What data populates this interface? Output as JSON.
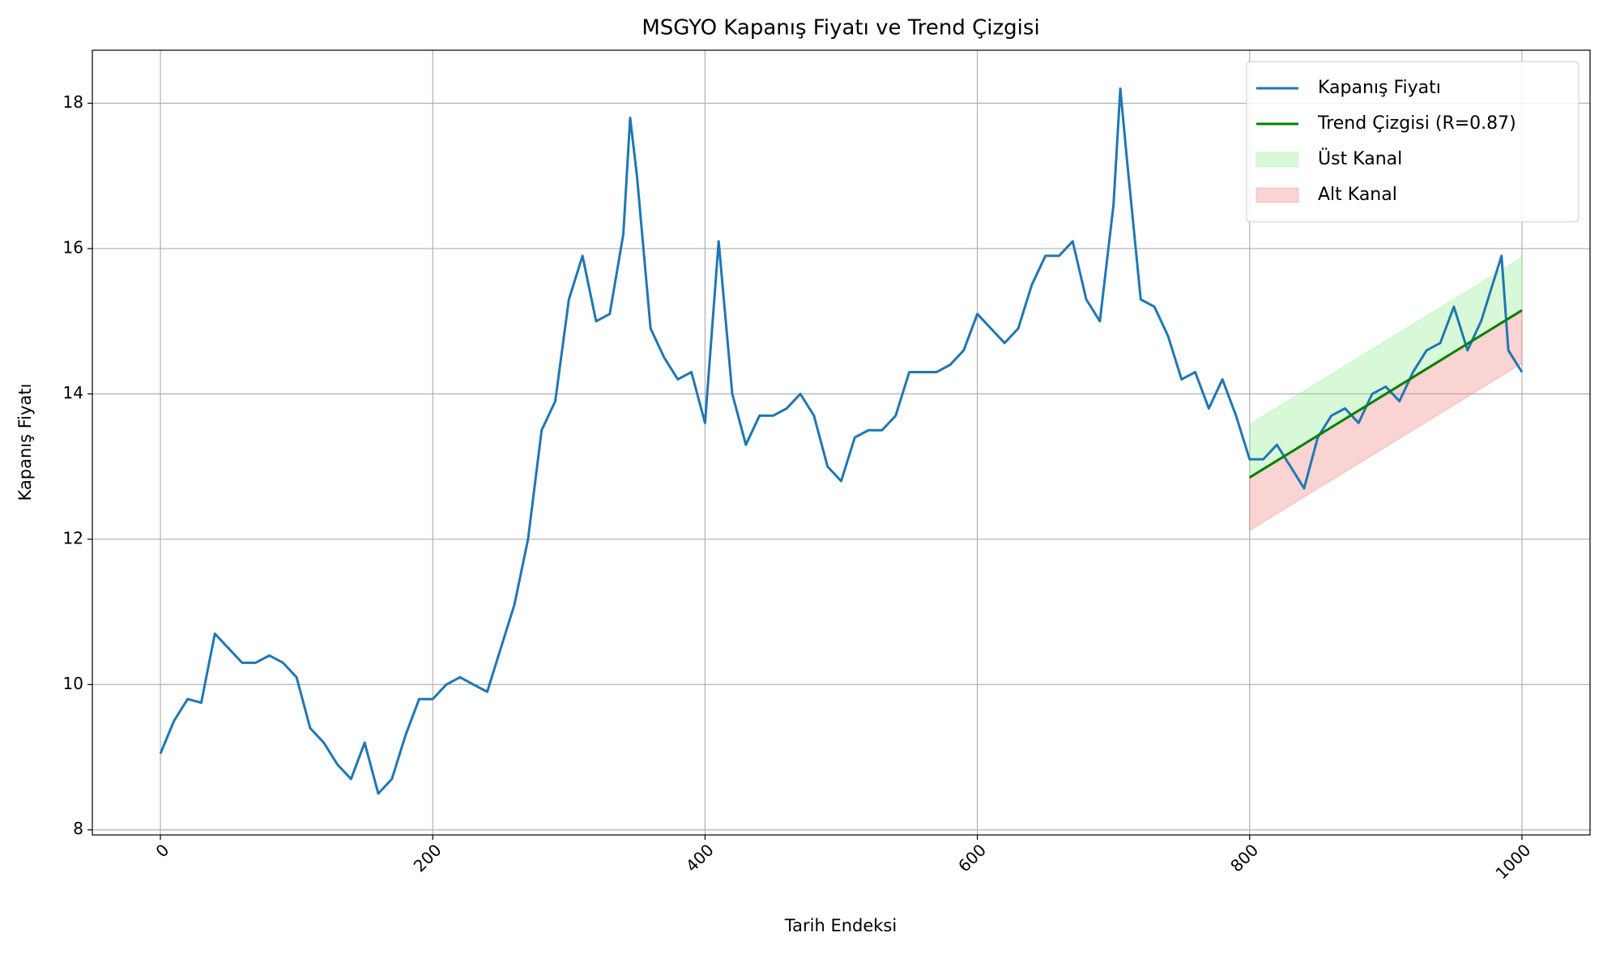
{
  "chart_data": {
    "type": "line",
    "title": "MSGYO Kapanış Fiyatı ve Trend Çizgisi",
    "x_label": "Tarih Endeksi",
    "y_label": "Kapanış Fiyatı",
    "xlim": [
      -50,
      1050
    ],
    "ylim": [
      7.93,
      18.73
    ],
    "xticks": [
      0,
      200,
      400,
      600,
      800,
      1000
    ],
    "yticks": [
      8,
      10,
      12,
      14,
      16,
      18
    ],
    "grid": true,
    "legend": "upper right",
    "series": [
      {
        "name": "Kapanış Fiyatı",
        "color": "#1f77b4",
        "x": [
          0,
          10,
          20,
          30,
          40,
          50,
          60,
          70,
          80,
          90,
          100,
          110,
          120,
          130,
          140,
          150,
          160,
          170,
          180,
          190,
          200,
          210,
          220,
          230,
          240,
          250,
          260,
          270,
          280,
          290,
          300,
          310,
          320,
          330,
          340,
          345,
          350,
          360,
          370,
          380,
          390,
          400,
          410,
          420,
          430,
          440,
          450,
          460,
          470,
          480,
          490,
          500,
          510,
          520,
          530,
          540,
          550,
          560,
          570,
          580,
          590,
          600,
          610,
          620,
          630,
          640,
          650,
          660,
          670,
          680,
          690,
          700,
          705,
          710,
          720,
          730,
          740,
          750,
          760,
          770,
          780,
          790,
          800,
          810,
          820,
          830,
          840,
          850,
          860,
          870,
          880,
          890,
          900,
          910,
          920,
          930,
          940,
          950,
          960,
          970,
          980,
          985,
          990,
          1000
        ],
        "values": [
          9.05,
          9.5,
          9.8,
          9.75,
          10.7,
          10.5,
          10.3,
          10.3,
          10.4,
          10.3,
          10.1,
          9.4,
          9.2,
          8.9,
          8.7,
          9.2,
          8.5,
          8.7,
          9.3,
          9.8,
          9.8,
          10.0,
          10.1,
          10.0,
          9.9,
          10.5,
          11.1,
          12.0,
          13.5,
          13.9,
          15.3,
          15.9,
          15.0,
          15.1,
          16.2,
          17.8,
          17.0,
          14.9,
          14.5,
          14.2,
          14.3,
          13.6,
          16.1,
          14.0,
          13.3,
          13.7,
          13.7,
          13.8,
          14.0,
          13.7,
          13.0,
          12.8,
          13.4,
          13.5,
          13.5,
          13.7,
          14.3,
          14.3,
          14.3,
          14.4,
          14.6,
          15.1,
          14.9,
          14.7,
          14.9,
          15.5,
          15.9,
          15.9,
          16.1,
          15.3,
          15.0,
          16.6,
          18.2,
          17.2,
          15.3,
          15.2,
          14.8,
          14.2,
          14.3,
          13.8,
          14.2,
          13.7,
          13.1,
          13.1,
          13.3,
          13.0,
          12.7,
          13.4,
          13.7,
          13.8,
          13.6,
          14.0,
          14.1,
          13.9,
          14.3,
          14.6,
          14.7,
          15.2,
          14.6,
          15.0,
          15.6,
          15.9,
          14.6,
          14.3
        ]
      },
      {
        "name": "Trend Çizgisi (R=0.87)",
        "color": "#008000",
        "x": [
          800,
          1000
        ],
        "values": [
          12.85,
          15.15
        ]
      }
    ],
    "bands": [
      {
        "name": "Üst Kanal",
        "color": "#90ee90",
        "x": [
          800,
          1000
        ],
        "lower": [
          12.85,
          15.15
        ],
        "upper": [
          13.58,
          15.88
        ]
      },
      {
        "name": "Alt Kanal",
        "color": "#f08080",
        "x": [
          800,
          1000
        ],
        "lower": [
          12.12,
          14.42
        ],
        "upper": [
          12.85,
          15.15
        ]
      }
    ]
  }
}
